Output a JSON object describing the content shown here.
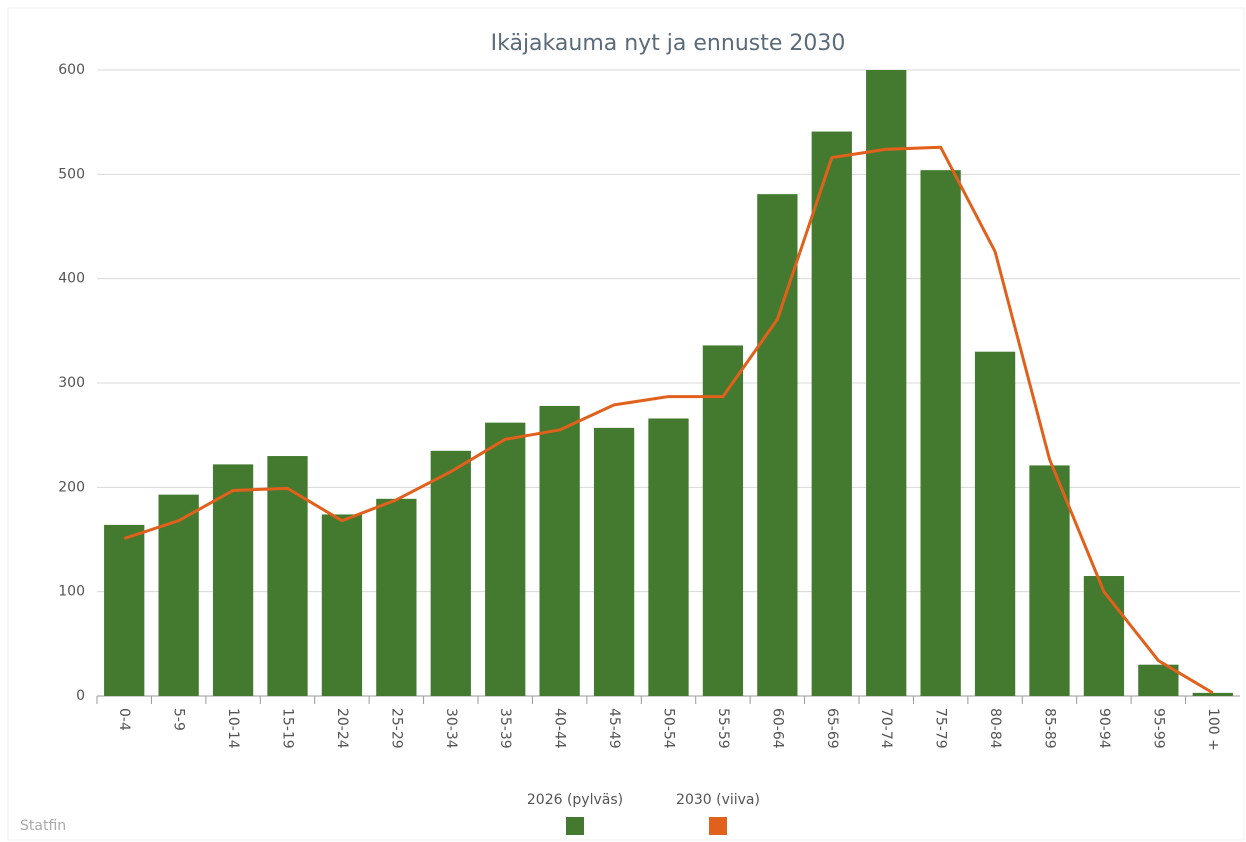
{
  "chart_data": {
    "type": "bar",
    "title": "Ikäjakauma nyt ja ennuste 2030",
    "credit": "Statfin",
    "categories": [
      "0-4",
      "5-9",
      "10-14",
      "15-19",
      "20-24",
      "25-29",
      "30-34",
      "35-39",
      "40-44",
      "45-49",
      "50-54",
      "55-59",
      "60-64",
      "65-69",
      "70-74",
      "75-79",
      "80-84",
      "85-89",
      "90-94",
      "95-99",
      "100 +"
    ],
    "series": [
      {
        "name": "2026 (pylväs)",
        "type": "bar",
        "color": "#437a2f",
        "values": [
          164,
          193,
          222,
          230,
          174,
          189,
          235,
          262,
          278,
          257,
          266,
          336,
          481,
          541,
          600,
          504,
          330,
          221,
          115,
          30,
          3
        ]
      },
      {
        "name": "2030 (viiva)",
        "type": "line",
        "color": "#e0601c",
        "values": [
          151,
          168,
          197,
          199,
          168,
          188,
          215,
          246,
          255,
          279,
          287,
          287,
          361,
          516,
          524,
          526,
          426,
          227,
          100,
          34,
          3
        ]
      }
    ],
    "ylim": [
      0,
      600
    ],
    "yticks": [
      0,
      100,
      200,
      300,
      400,
      500,
      600
    ],
    "grid": true
  }
}
